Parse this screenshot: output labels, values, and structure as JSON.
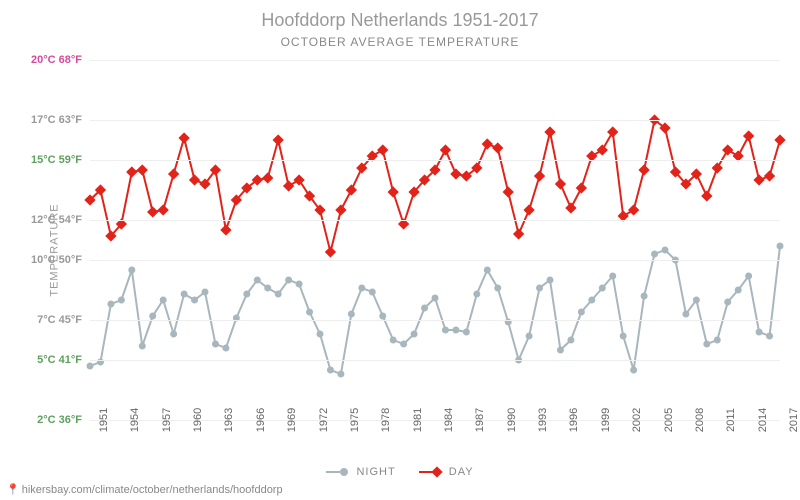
{
  "title": "Hoofddorp Netherlands 1951-2017",
  "subtitle": "OCTOBER AVERAGE TEMPERATURE",
  "ylabel": "TEMPERATURE",
  "source_url": "hikersbay.com/climate/october/netherlands/hoofddorp",
  "chart": {
    "type": "line",
    "background_color": "#ffffff",
    "grid_color": "#eeeeee",
    "title_color": "#999999",
    "title_fontsize": 18,
    "subtitle_fontsize": 12,
    "axis_label_fontsize": 11,
    "ylim_c": [
      2,
      20
    ],
    "yticks": [
      {
        "c": 2,
        "f": 36,
        "color": "#5fa05f"
      },
      {
        "c": 5,
        "f": 41,
        "color": "#5fa05f"
      },
      {
        "c": 7,
        "f": 45,
        "color": "#999999"
      },
      {
        "c": 10,
        "f": 50,
        "color": "#999999"
      },
      {
        "c": 12,
        "f": 54,
        "color": "#999999"
      },
      {
        "c": 15,
        "f": 59,
        "color": "#5fa05f"
      },
      {
        "c": 17,
        "f": 63,
        "color": "#999999"
      },
      {
        "c": 20,
        "f": 68,
        "color": "#d64a9a"
      }
    ],
    "xticks": [
      1951,
      1954,
      1957,
      1960,
      1963,
      1966,
      1969,
      1972,
      1975,
      1978,
      1981,
      1984,
      1987,
      1990,
      1993,
      1996,
      1999,
      2002,
      2005,
      2008,
      2011,
      2014,
      2017
    ],
    "years_start": 1951,
    "years_end": 2017,
    "series": [
      {
        "name": "NIGHT",
        "color": "#a8b6bd",
        "line_width": 2,
        "marker": "circle",
        "marker_size": 3.5,
        "values": [
          4.7,
          4.9,
          7.8,
          8.0,
          9.5,
          5.7,
          7.2,
          8.0,
          6.3,
          8.3,
          8.0,
          8.4,
          5.8,
          5.6,
          7.1,
          8.3,
          9.0,
          8.6,
          8.3,
          9.0,
          8.8,
          7.4,
          6.3,
          4.5,
          4.3,
          7.3,
          8.6,
          8.4,
          7.2,
          6.0,
          5.8,
          6.3,
          7.6,
          8.1,
          6.5,
          6.5,
          6.4,
          8.3,
          9.5,
          8.6,
          6.9,
          5.0,
          6.2,
          8.6,
          9.0,
          5.5,
          6.0,
          7.4,
          8.0,
          8.6,
          9.2,
          6.2,
          4.5,
          8.2,
          10.3,
          10.5,
          10.0,
          7.3,
          8.0,
          5.8,
          6.0,
          7.9,
          8.5,
          9.2,
          6.4,
          6.2,
          10.7
        ]
      },
      {
        "name": "DAY",
        "color": "#e2231a",
        "line_width": 2,
        "marker": "diamond",
        "marker_size": 4,
        "values": [
          13.0,
          13.5,
          11.2,
          11.8,
          14.4,
          14.5,
          12.4,
          12.5,
          14.3,
          16.1,
          14.0,
          13.8,
          14.5,
          11.5,
          13.0,
          13.6,
          14.0,
          14.1,
          16.0,
          13.7,
          14.0,
          13.2,
          12.5,
          10.4,
          12.5,
          13.5,
          14.6,
          15.2,
          15.5,
          13.4,
          11.8,
          13.4,
          14.0,
          14.5,
          15.5,
          14.3,
          14.2,
          14.6,
          15.8,
          15.6,
          13.4,
          11.3,
          12.5,
          14.2,
          16.4,
          13.8,
          12.6,
          13.6,
          15.2,
          15.5,
          16.4,
          12.2,
          12.5,
          14.5,
          17.0,
          16.6,
          14.4,
          13.8,
          14.3,
          13.2,
          14.6,
          15.5,
          15.2,
          16.2,
          14.0,
          14.2,
          16.0
        ]
      }
    ],
    "legend_position": "bottom"
  }
}
